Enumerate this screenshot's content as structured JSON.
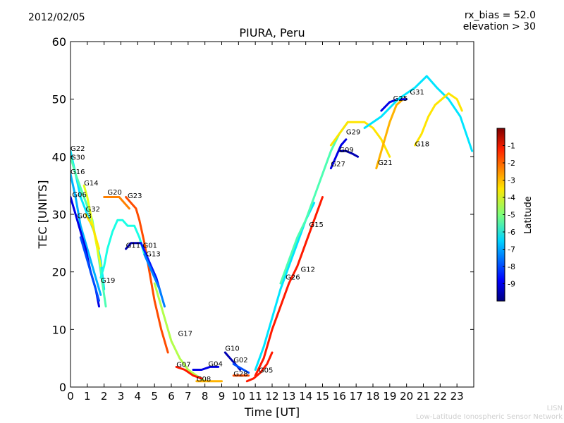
{
  "header": {
    "date": "2012/02/05",
    "rx_bias": "rx_bias = 52.0",
    "elevation": "elevation > 30"
  },
  "credits": {
    "line1": "LISN",
    "line2": "Low-Latitude Ionospheric Sensor Network"
  },
  "chart_data": {
    "type": "scatter",
    "title": "PIURA, Peru",
    "xlabel": "Time [UT]",
    "ylabel": "TEC [UNITS]",
    "xlim": [
      0,
      24
    ],
    "ylim": [
      0,
      60
    ],
    "xticks": [
      "0",
      "1",
      "2",
      "3",
      "4",
      "5",
      "6",
      "7",
      "8",
      "9",
      "10",
      "11",
      "12",
      "13",
      "14",
      "15",
      "16",
      "17",
      "18",
      "19",
      "20",
      "21",
      "22",
      "23"
    ],
    "yticks": [
      "0",
      "10",
      "20",
      "30",
      "40",
      "50",
      "60"
    ],
    "colorbar": {
      "label": "Latitude",
      "min": -10,
      "max": 0,
      "ticks": [
        "-1",
        "-2",
        "-3",
        "-4",
        "-5",
        "-6",
        "-7",
        "-8",
        "-9"
      ],
      "tick_values": [
        -1,
        -2,
        -3,
        -4,
        -5,
        -6,
        -7,
        -8,
        -9
      ]
    },
    "series": [
      {
        "name": "G22",
        "label_at": [
          0.0,
          41.0
        ],
        "points": [
          [
            0.0,
            41
          ],
          [
            0.3,
            37
          ],
          [
            0.6,
            33
          ],
          [
            1.0,
            30
          ],
          [
            1.4,
            27
          ],
          [
            1.8,
            22
          ],
          [
            2.0,
            17
          ]
        ],
        "lat": -6.5
      },
      {
        "name": "G30",
        "label_at": [
          0.0,
          39.5
        ],
        "points": [
          [
            0.0,
            40
          ],
          [
            0.3,
            37
          ],
          [
            0.8,
            33
          ],
          [
            1.3,
            29
          ],
          [
            1.6,
            24
          ],
          [
            1.9,
            18
          ],
          [
            2.1,
            14
          ]
        ],
        "lat": -5.5
      },
      {
        "name": "G16",
        "label_at": [
          0.0,
          37.0
        ],
        "points": [
          [
            0.0,
            37
          ],
          [
            0.3,
            33
          ],
          [
            0.6,
            28
          ],
          [
            0.9,
            25
          ],
          [
            1.2,
            22
          ],
          [
            1.5,
            19
          ],
          [
            1.8,
            16
          ]
        ],
        "lat": -7.0
      },
      {
        "name": "G14",
        "label_at": [
          0.8,
          35.0
        ],
        "points": [
          [
            0.8,
            35
          ],
          [
            1.0,
            33
          ],
          [
            1.2,
            30
          ],
          [
            1.4,
            27
          ],
          [
            1.6,
            24
          ],
          [
            1.8,
            21
          ]
        ],
        "lat": -4.0
      },
      {
        "name": "G06",
        "label_at": [
          0.1,
          33.0
        ],
        "points": [
          [
            0.0,
            33
          ],
          [
            0.3,
            30
          ],
          [
            0.6,
            27
          ],
          [
            0.9,
            24
          ],
          [
            1.2,
            20
          ],
          [
            1.5,
            17
          ],
          [
            1.7,
            14
          ]
        ],
        "lat": -9.0
      },
      {
        "name": "G32",
        "label_at": [
          0.9,
          30.5
        ],
        "points": [
          [
            0.9,
            30
          ],
          [
            1.1,
            29
          ],
          [
            1.3,
            28
          ],
          [
            1.5,
            26
          ],
          [
            1.7,
            24
          ]
        ],
        "lat": -3.5
      },
      {
        "name": "G03",
        "label_at": [
          0.4,
          29.3
        ],
        "points": [
          [
            0.6,
            26
          ],
          [
            0.9,
            23
          ],
          [
            1.2,
            20
          ],
          [
            1.5,
            17
          ],
          [
            1.7,
            15
          ]
        ],
        "lat": -8.0
      },
      {
        "name": "G20",
        "label_at": [
          2.2,
          33.4
        ],
        "points": [
          [
            2.0,
            33
          ],
          [
            2.3,
            33
          ],
          [
            2.6,
            33
          ],
          [
            2.9,
            33
          ],
          [
            3.2,
            32
          ],
          [
            3.5,
            31
          ]
        ],
        "lat": -2.5
      },
      {
        "name": "G23",
        "label_at": [
          3.4,
          32.8
        ],
        "points": [
          [
            3.3,
            33
          ],
          [
            3.6,
            32
          ],
          [
            3.9,
            31
          ],
          [
            4.1,
            29
          ],
          [
            4.4,
            25
          ],
          [
            4.7,
            20
          ],
          [
            5.0,
            15
          ],
          [
            5.4,
            10
          ],
          [
            5.8,
            6
          ]
        ],
        "lat": -2.0
      },
      {
        "name": "G19",
        "label_at": [
          1.8,
          18.1
        ],
        "points": [
          [
            1.8,
            19
          ],
          [
            2.0,
            21
          ],
          [
            2.2,
            24
          ],
          [
            2.5,
            27
          ],
          [
            2.8,
            29
          ],
          [
            3.1,
            29
          ],
          [
            3.4,
            28
          ],
          [
            3.8,
            28
          ],
          [
            4.1,
            26
          ],
          [
            4.4,
            23
          ]
        ],
        "lat": -6.0
      },
      {
        "name": "G11",
        "label_at": [
          3.3,
          24.2
        ],
        "points": [
          [
            3.3,
            24
          ],
          [
            3.6,
            25
          ],
          [
            3.9,
            25
          ],
          [
            4.2,
            25
          ]
        ],
        "lat": -9.5
      },
      {
        "name": "G01",
        "label_at": [
          4.3,
          24.2
        ],
        "points": [
          [
            4.2,
            25
          ],
          [
            4.5,
            23
          ],
          [
            4.8,
            21
          ],
          [
            5.1,
            19
          ],
          [
            5.4,
            16
          ]
        ],
        "lat": -8.5
      },
      {
        "name": "G13",
        "label_at": [
          4.5,
          22.7
        ],
        "points": [
          [
            4.4,
            23
          ],
          [
            4.7,
            21
          ],
          [
            5.0,
            19
          ],
          [
            5.3,
            17
          ],
          [
            5.6,
            14
          ]
        ],
        "lat": -7.5
      },
      {
        "name": "G17",
        "label_at": [
          6.4,
          8.9
        ],
        "points": [
          [
            5.0,
            18
          ],
          [
            5.5,
            13
          ],
          [
            6.0,
            8
          ],
          [
            6.5,
            5
          ],
          [
            7.0,
            3
          ],
          [
            7.5,
            2
          ],
          [
            8.0,
            1
          ]
        ],
        "lat": -4.5
      },
      {
        "name": "G07",
        "label_at": [
          6.3,
          3.5
        ],
        "points": [
          [
            6.3,
            3.5
          ],
          [
            6.8,
            3
          ],
          [
            7.3,
            2
          ],
          [
            7.8,
            1.5
          ]
        ],
        "lat": -1.5
      },
      {
        "name": "G04",
        "label_at": [
          8.2,
          3.6
        ],
        "points": [
          [
            7.3,
            3
          ],
          [
            7.8,
            3
          ],
          [
            8.3,
            3.5
          ],
          [
            8.8,
            3.5
          ]
        ],
        "lat": -9.0
      },
      {
        "name": "G08",
        "label_at": [
          7.5,
          1.0
        ],
        "points": [
          [
            7.5,
            1
          ],
          [
            8.0,
            1
          ],
          [
            8.5,
            1
          ],
          [
            9.0,
            1
          ]
        ],
        "lat": -3.0
      },
      {
        "name": "G10",
        "label_at": [
          9.2,
          6.3
        ],
        "points": [
          [
            9.2,
            6
          ],
          [
            9.5,
            5
          ],
          [
            9.8,
            4
          ],
          [
            10.1,
            3
          ]
        ],
        "lat": -9.5
      },
      {
        "name": "G02",
        "label_at": [
          9.7,
          4.3
        ],
        "points": [
          [
            9.7,
            4
          ],
          [
            10.0,
            3.5
          ],
          [
            10.3,
            3
          ],
          [
            10.6,
            2.5
          ]
        ],
        "lat": -8.0
      },
      {
        "name": "G28",
        "label_at": [
          9.7,
          1.9
        ],
        "points": [
          [
            9.7,
            2
          ],
          [
            10.0,
            2
          ],
          [
            10.3,
            2
          ],
          [
            10.6,
            2
          ]
        ],
        "lat": -2.0
      },
      {
        "name": "G05",
        "label_at": [
          11.2,
          2.5
        ],
        "points": [
          [
            10.5,
            1
          ],
          [
            10.9,
            1.5
          ],
          [
            11.3,
            2.5
          ],
          [
            11.7,
            4
          ],
          [
            12.0,
            6
          ]
        ],
        "lat": -1.5
      },
      {
        "name": "G26",
        "label_at": [
          12.8,
          18.7
        ],
        "points": [
          [
            11.0,
            3
          ],
          [
            11.5,
            7
          ],
          [
            12.0,
            12
          ],
          [
            12.5,
            17
          ],
          [
            13.0,
            21
          ],
          [
            13.5,
            25
          ],
          [
            14.0,
            29
          ],
          [
            14.5,
            32
          ]
        ],
        "lat": -6.5
      },
      {
        "name": "G12",
        "label_at": [
          13.7,
          20.0
        ],
        "points": [
          [
            11.0,
            2
          ],
          [
            11.5,
            5
          ],
          [
            12.0,
            10
          ],
          [
            12.5,
            14
          ],
          [
            13.0,
            18
          ],
          [
            13.5,
            21
          ],
          [
            14.0,
            25
          ],
          [
            14.5,
            29
          ],
          [
            15.0,
            33
          ]
        ],
        "lat": -1.5
      },
      {
        "name": "G15",
        "label_at": [
          14.2,
          27.8
        ],
        "points": [
          [
            12.5,
            18
          ],
          [
            13.0,
            22
          ],
          [
            13.5,
            26
          ],
          [
            14.0,
            29
          ],
          [
            14.5,
            33
          ],
          [
            15.0,
            37
          ],
          [
            15.5,
            41
          ],
          [
            16.0,
            44
          ],
          [
            16.5,
            46
          ]
        ],
        "lat": -5.5
      },
      {
        "name": "G27",
        "label_at": [
          15.5,
          38.3
        ],
        "points": [
          [
            15.5,
            38
          ],
          [
            15.8,
            40
          ],
          [
            16.1,
            42
          ],
          [
            16.4,
            43
          ]
        ],
        "lat": -9.0
      },
      {
        "name": "G09",
        "label_at": [
          16.0,
          40.8
        ],
        "points": [
          [
            16.0,
            41
          ],
          [
            16.4,
            41
          ],
          [
            16.8,
            40.5
          ],
          [
            17.1,
            40
          ]
        ],
        "lat": -9.5
      },
      {
        "name": "G29",
        "label_at": [
          16.4,
          43.9
        ],
        "points": [
          [
            15.5,
            42
          ],
          [
            16.0,
            44
          ],
          [
            16.5,
            46
          ],
          [
            17.0,
            46
          ],
          [
            17.5,
            46
          ],
          [
            18.0,
            45
          ],
          [
            18.5,
            43
          ],
          [
            19.0,
            40
          ]
        ],
        "lat": -3.5
      },
      {
        "name": "G21",
        "label_at": [
          18.3,
          38.6
        ],
        "points": [
          [
            18.2,
            38
          ],
          [
            18.6,
            42
          ],
          [
            19.0,
            46
          ],
          [
            19.4,
            49
          ],
          [
            19.8,
            50
          ]
        ],
        "lat": -3.0
      },
      {
        "name": "G25",
        "label_at": [
          19.2,
          49.7
        ],
        "points": [
          [
            18.5,
            48
          ],
          [
            19.0,
            49.5
          ],
          [
            19.5,
            50
          ],
          [
            20.0,
            50
          ]
        ],
        "lat": -9.0
      },
      {
        "name": "G31",
        "label_at": [
          20.2,
          50.8
        ],
        "points": [
          [
            17.5,
            45
          ],
          [
            18.5,
            47
          ],
          [
            19.5,
            50
          ],
          [
            20.5,
            52
          ],
          [
            21.2,
            54
          ],
          [
            21.8,
            52
          ],
          [
            22.5,
            50
          ],
          [
            23.2,
            47
          ],
          [
            23.9,
            41
          ]
        ],
        "lat": -6.5
      },
      {
        "name": "G18",
        "label_at": [
          20.5,
          41.8
        ],
        "points": [
          [
            20.5,
            42
          ],
          [
            20.9,
            44
          ],
          [
            21.3,
            47
          ],
          [
            21.7,
            49
          ],
          [
            22.1,
            50
          ],
          [
            22.5,
            51
          ],
          [
            23.0,
            50
          ],
          [
            23.3,
            48
          ]
        ],
        "lat": -3.5
      }
    ]
  }
}
